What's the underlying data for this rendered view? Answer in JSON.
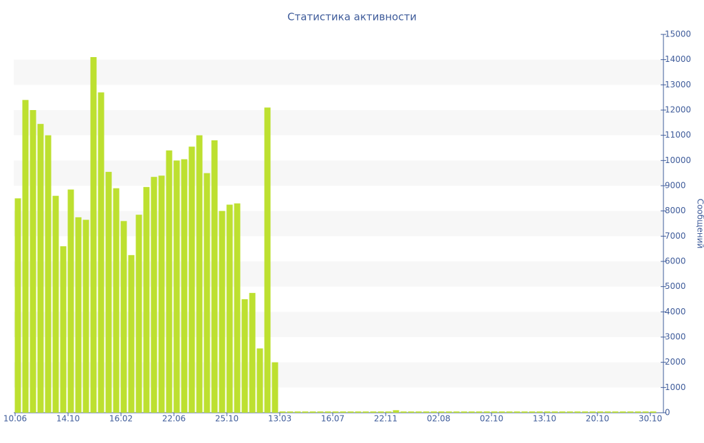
{
  "chart_data": {
    "type": "bar",
    "title": "Статистика активности",
    "y_label": "Сообщений",
    "categories": [
      "10.06",
      null,
      null,
      null,
      null,
      null,
      null,
      "14.10",
      null,
      null,
      null,
      null,
      null,
      null,
      "16.02",
      null,
      null,
      null,
      null,
      null,
      null,
      "22.06",
      null,
      null,
      null,
      null,
      null,
      null,
      "25.10",
      null,
      null,
      null,
      null,
      null,
      null,
      "13.03",
      null,
      null,
      null,
      null,
      null,
      null,
      "16.07",
      null,
      null,
      null,
      null,
      null,
      null,
      "22.11",
      null,
      null,
      null,
      null,
      null,
      null,
      "02.08",
      null,
      null,
      null,
      null,
      null,
      null,
      "02.10",
      null,
      null,
      null,
      null,
      null,
      null,
      "13.10",
      null,
      null,
      null,
      null,
      null,
      null,
      "20.10",
      null,
      null,
      null,
      null,
      null,
      null,
      "30.10"
    ],
    "values": [
      8500,
      12400,
      12000,
      11450,
      11000,
      8600,
      6600,
      8850,
      7750,
      7650,
      14100,
      12700,
      9550,
      8900,
      7600,
      6250,
      7850,
      8950,
      9350,
      9400,
      10400,
      10000,
      10050,
      10550,
      11000,
      9500,
      10800,
      8000,
      8250,
      8300,
      4500,
      4750,
      2550,
      12100,
      2000,
      50,
      50,
      50,
      50,
      50,
      50,
      50,
      50,
      50,
      50,
      50,
      50,
      50,
      50,
      50,
      100,
      50,
      50,
      50,
      50,
      50,
      50,
      50,
      50,
      50,
      50,
      50,
      50,
      50,
      50,
      50,
      50,
      50,
      50,
      50,
      50,
      50,
      50,
      50,
      50,
      50,
      50,
      50,
      50,
      50,
      50,
      50,
      50,
      50,
      50
    ],
    "color": "#bde030",
    "ylim": [
      0,
      15000
    ],
    "yticks": [
      0,
      1000,
      2000,
      3000,
      4000,
      5000,
      6000,
      7000,
      8000,
      9000,
      10000,
      11000,
      12000,
      13000,
      14000,
      15000
    ],
    "y_axis_side": "right",
    "grid": "bands"
  }
}
